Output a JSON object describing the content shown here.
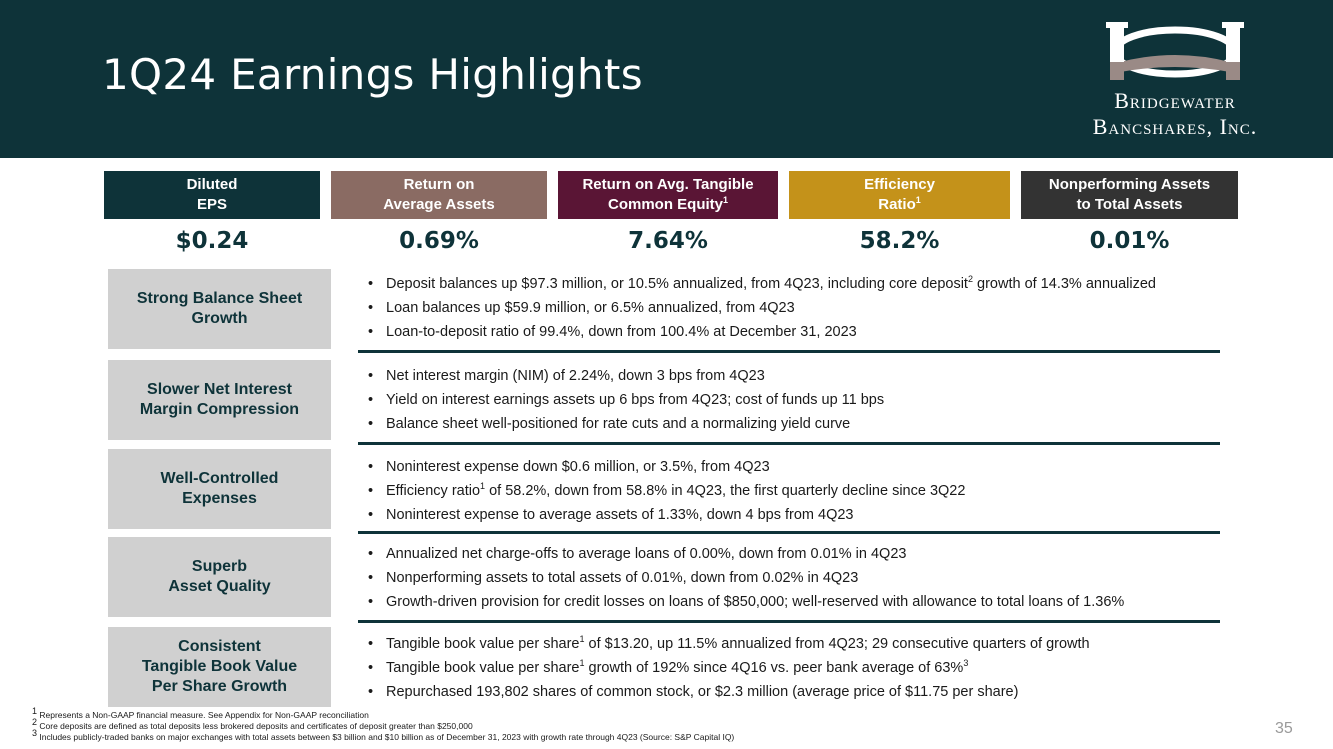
{
  "header": {
    "title": "1Q24 Earnings Highlights",
    "logo_line1": "Bridgewater",
    "logo_line2": "Bancshares, Inc.",
    "logo_icon": "bridge-icon"
  },
  "metrics": [
    {
      "label_line1": "Diluted",
      "label_line2": "EPS",
      "label_sup": "",
      "value": "$0.24",
      "color": "#0e3339"
    },
    {
      "label_line1": "Return on",
      "label_line2": "Average Assets",
      "label_sup": "",
      "value": "0.69%",
      "color": "#8a6b63"
    },
    {
      "label_line1": "Return on Avg. Tangible",
      "label_line2": "Common Equity",
      "label_sup": "1",
      "value": "7.64%",
      "color": "#5a1535"
    },
    {
      "label_line1": "Efficiency",
      "label_line2": "Ratio",
      "label_sup": "1",
      "value": "58.2%",
      "color": "#c4921a"
    },
    {
      "label_line1": "Nonperforming Assets",
      "label_line2": "to Total Assets",
      "label_sup": "",
      "value": "0.01%",
      "color": "#333333"
    }
  ],
  "sections": [
    {
      "category_line1": "Strong Balance Sheet",
      "category_line2": "Growth",
      "category_line3": "",
      "bullets": [
        {
          "pre": "Deposit balances up $97.3 million, or 10.5% annualized, from 4Q23, including core deposit",
          "sup": "2",
          "post": " growth of 14.3% annualized"
        },
        {
          "pre": "Loan balances up $59.9 million, or 6.5% annualized, from 4Q23",
          "sup": "",
          "post": ""
        },
        {
          "pre": "Loan-to-deposit ratio of 99.4%, down from 100.4% at December 31, 2023",
          "sup": "",
          "post": ""
        }
      ]
    },
    {
      "category_line1": "Slower Net Interest",
      "category_line2": "Margin Compression",
      "category_line3": "",
      "bullets": [
        {
          "pre": "Net interest margin (NIM) of 2.24%, down 3 bps from 4Q23",
          "sup": "",
          "post": ""
        },
        {
          "pre": "Yield on interest earnings assets up 6 bps from 4Q23; cost of funds up 11 bps",
          "sup": "",
          "post": ""
        },
        {
          "pre": "Balance sheet well-positioned for rate cuts and a normalizing yield curve",
          "sup": "",
          "post": ""
        }
      ]
    },
    {
      "category_line1": "Well-Controlled",
      "category_line2": "Expenses",
      "category_line3": "",
      "bullets": [
        {
          "pre": "Noninterest expense down $0.6 million, or 3.5%, from 4Q23",
          "sup": "",
          "post": ""
        },
        {
          "pre": "Efficiency ratio",
          "sup": "1",
          "post": " of 58.2%, down from 58.8% in 4Q23, the first quarterly decline since 3Q22"
        },
        {
          "pre": "Noninterest expense to average assets of 1.33%, down 4 bps from 4Q23",
          "sup": "",
          "post": ""
        }
      ]
    },
    {
      "category_line1": "Superb",
      "category_line2": "Asset Quality",
      "category_line3": "",
      "bullets": [
        {
          "pre": "Annualized net charge-offs to average loans of 0.00%, down from 0.01% in 4Q23",
          "sup": "",
          "post": ""
        },
        {
          "pre": "Nonperforming assets to total assets of 0.01%, down from 0.02% in 4Q23",
          "sup": "",
          "post": ""
        },
        {
          "pre": "Growth-driven provision for credit losses on loans of $850,000; well-reserved with allowance to total loans of 1.36%",
          "sup": "",
          "post": ""
        }
      ]
    },
    {
      "category_line1": "Consistent",
      "category_line2": "Tangible Book Value",
      "category_line3": "Per Share Growth",
      "bullets": [
        {
          "pre": "Tangible book value per share",
          "sup": "1",
          "post": " of $13.20, up 11.5% annualized from 4Q23; 29 consecutive quarters of growth"
        },
        {
          "pre": "Tangible book value per share",
          "sup": "1",
          "post": " growth of 192% since 4Q16 vs. peer bank average of 63%",
          "sup2": "3"
        },
        {
          "pre": "Repurchased 193,802 shares of common stock, or $2.3 million (average price of $11.75 per share)",
          "sup": "",
          "post": ""
        }
      ]
    }
  ],
  "footnotes": [
    {
      "num": "1",
      "text": " Represents a Non-GAAP financial measure. See Appendix for Non-GAAP reconciliation"
    },
    {
      "num": "2",
      "text": " Core deposits are defined as total deposits less brokered deposits and certificates of deposit greater than $250,000"
    },
    {
      "num": "3",
      "text": " Includes publicly-traded banks on major exchanges with total assets between $3 billion and $10 billion as of December 31, 2023 with growth rate through 4Q23 (Source: S&P Capital IQ)"
    }
  ],
  "page_number": "35"
}
